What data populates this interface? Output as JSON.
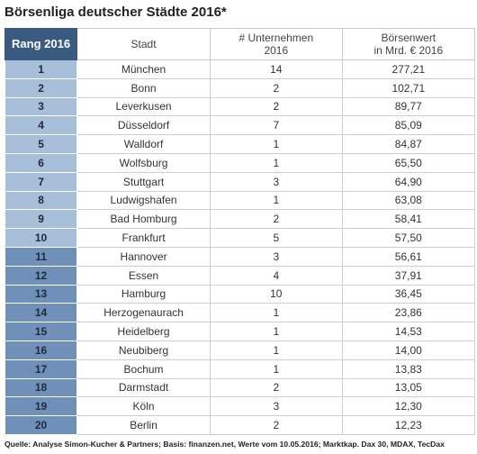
{
  "header": {
    "title": "Börsenliga deutscher Städte 2016*"
  },
  "table": {
    "columns": [
      "Rang 2016",
      "Stadt",
      "# Unternehmen\n2016",
      "Börsenwert\nin Mrd. € 2016"
    ],
    "rows": [
      [
        "1",
        "München",
        "14",
        "277,21"
      ],
      [
        "2",
        "Bonn",
        "2",
        "102,71"
      ],
      [
        "3",
        "Leverkusen",
        "2",
        "89,77"
      ],
      [
        "4",
        "Düsseldorf",
        "7",
        "85,09"
      ],
      [
        "5",
        "Walldorf",
        "1",
        "84,87"
      ],
      [
        "6",
        "Wolfsburg",
        "1",
        "65,50"
      ],
      [
        "7",
        "Stuttgart",
        "3",
        "64,90"
      ],
      [
        "8",
        "Ludwigshafen",
        "1",
        "63,08"
      ],
      [
        "9",
        "Bad Homburg",
        "2",
        "58,41"
      ],
      [
        "10",
        "Frankfurt",
        "5",
        "57,50"
      ],
      [
        "11",
        "Hannover",
        "3",
        "56,61"
      ],
      [
        "12",
        "Essen",
        "4",
        "37,91"
      ],
      [
        "13",
        "Hamburg",
        "10",
        "36,45"
      ],
      [
        "14",
        "Herzogenaurach",
        "1",
        "23,86"
      ],
      [
        "15",
        "Heidelberg",
        "1",
        "14,53"
      ],
      [
        "16",
        "Neubiberg",
        "1",
        "14,00"
      ],
      [
        "17",
        "Bochum",
        "1",
        "13,83"
      ],
      [
        "18",
        "Darmstadt",
        "2",
        "13,05"
      ],
      [
        "19",
        "Köln",
        "3",
        "12,30"
      ],
      [
        "20",
        "Berlin",
        "2",
        "12,23"
      ]
    ]
  },
  "footer": {
    "source": "Quelle: Analyse Simon-Kucher & Partners; Basis: finanzen.net, Werte vom 10.05.2016; Marktkap. Dax 30, MDAX, TecDax"
  }
}
